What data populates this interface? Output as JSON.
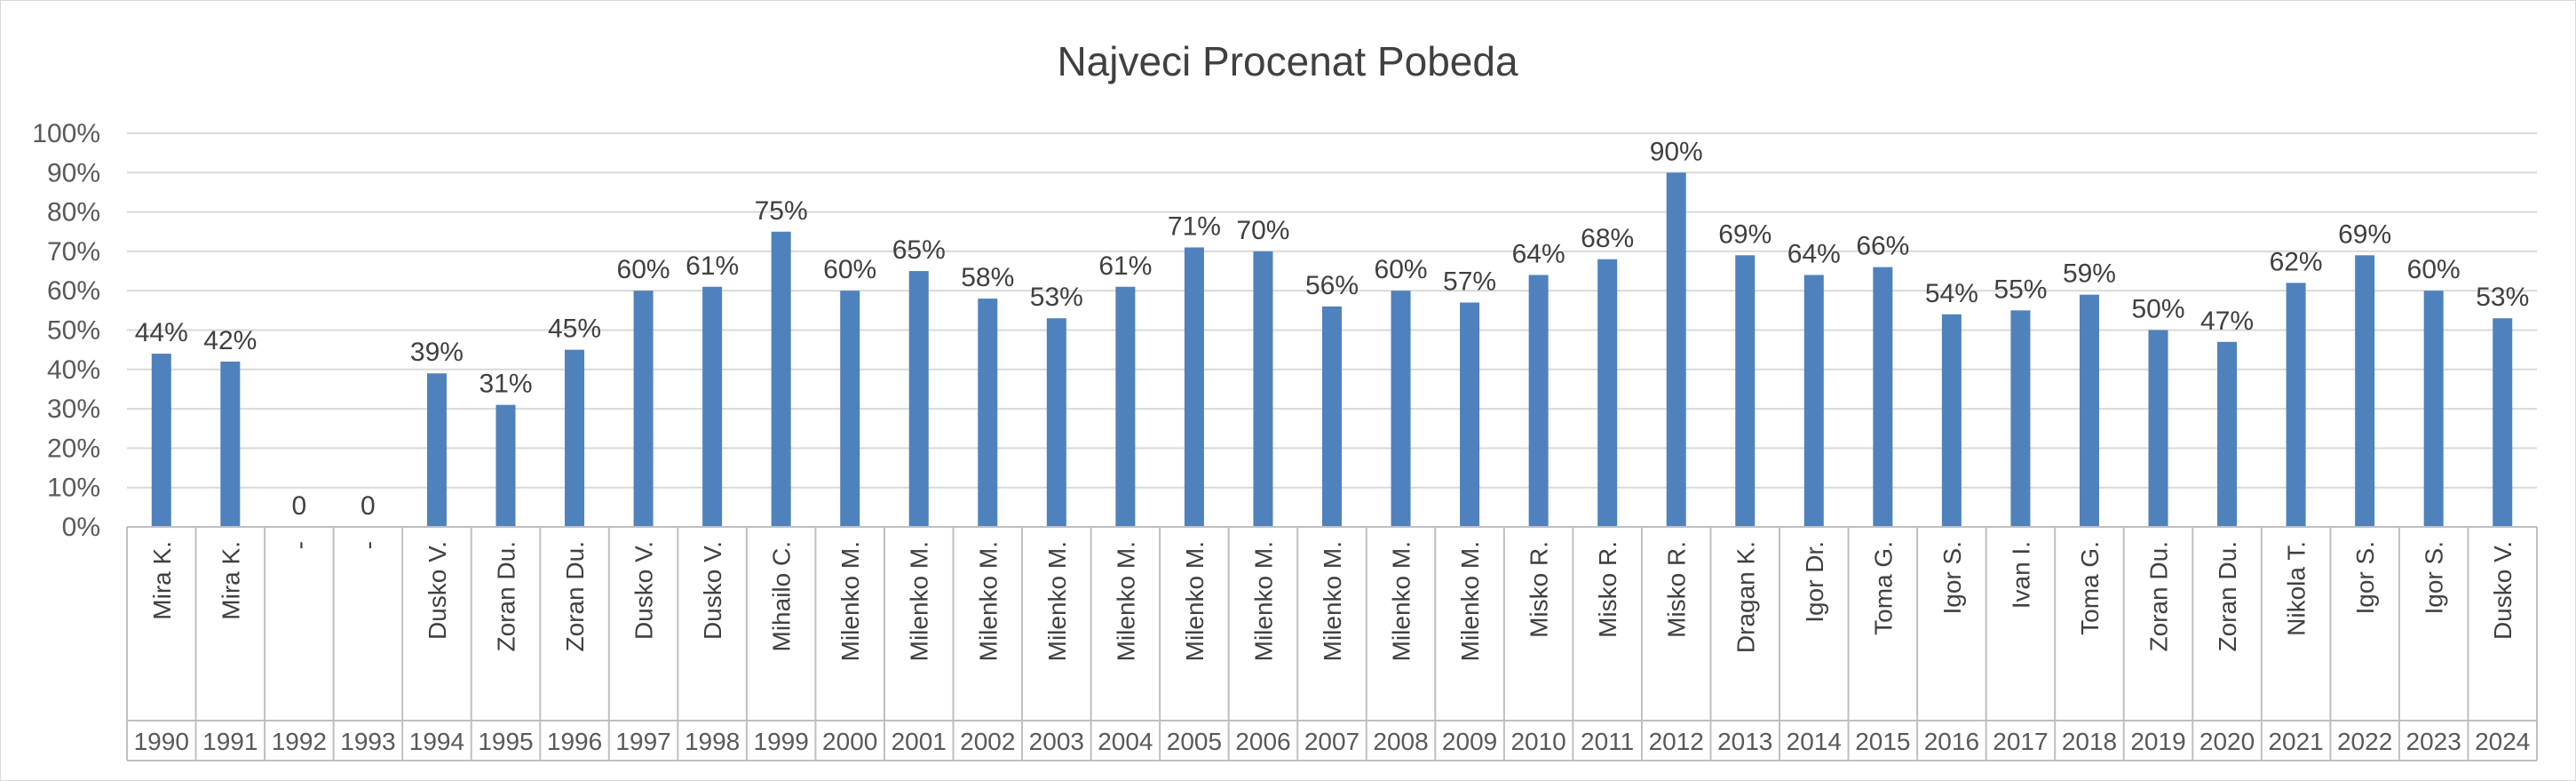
{
  "chart_data": {
    "type": "bar",
    "title": "Najveci Procenat Pobeda",
    "xlabel": "",
    "ylabel": "",
    "ylim": [
      0,
      100
    ],
    "yticks": [
      "0%",
      "10%",
      "20%",
      "30%",
      "40%",
      "50%",
      "60%",
      "70%",
      "80%",
      "90%",
      "100%"
    ],
    "grid": true,
    "bar_color": "#4f81bd",
    "categories": [
      {
        "name": "Mira K.",
        "year": "1990"
      },
      {
        "name": "Mira K.",
        "year": "1991"
      },
      {
        "name": "-",
        "year": "1992"
      },
      {
        "name": "-",
        "year": "1993"
      },
      {
        "name": "Dusko V.",
        "year": "1994"
      },
      {
        "name": "Zoran Du.",
        "year": "1995"
      },
      {
        "name": "Zoran Du.",
        "year": "1996"
      },
      {
        "name": "Dusko V.",
        "year": "1997"
      },
      {
        "name": "Dusko V.",
        "year": "1998"
      },
      {
        "name": "Mihailo C.",
        "year": "1999"
      },
      {
        "name": "Milenko M.",
        "year": "2000"
      },
      {
        "name": "Milenko M.",
        "year": "2001"
      },
      {
        "name": "Milenko M.",
        "year": "2002"
      },
      {
        "name": "Milenko M.",
        "year": "2003"
      },
      {
        "name": "Milenko M.",
        "year": "2004"
      },
      {
        "name": "Milenko M.",
        "year": "2005"
      },
      {
        "name": "Milenko M.",
        "year": "2006"
      },
      {
        "name": "Milenko M.",
        "year": "2007"
      },
      {
        "name": "Milenko M.",
        "year": "2008"
      },
      {
        "name": "Milenko M.",
        "year": "2009"
      },
      {
        "name": "Misko R.",
        "year": "2010"
      },
      {
        "name": "Misko R.",
        "year": "2011"
      },
      {
        "name": "Misko R.",
        "year": "2012"
      },
      {
        "name": "Dragan K.",
        "year": "2013"
      },
      {
        "name": "Igor Dr.",
        "year": "2014"
      },
      {
        "name": "Toma G.",
        "year": "2015"
      },
      {
        "name": "Igor S.",
        "year": "2016"
      },
      {
        "name": "Ivan I.",
        "year": "2017"
      },
      {
        "name": "Toma G.",
        "year": "2018"
      },
      {
        "name": "Zoran Du.",
        "year": "2019"
      },
      {
        "name": "Zoran Du.",
        "year": "2020"
      },
      {
        "name": "Nikola T.",
        "year": "2021"
      },
      {
        "name": "Igor S.",
        "year": "2022"
      },
      {
        "name": "Igor S.",
        "year": "2023"
      },
      {
        "name": "Dusko V.",
        "year": "2024"
      }
    ],
    "values": [
      44,
      42,
      0,
      0,
      39,
      31,
      45,
      60,
      61,
      75,
      60,
      65,
      58,
      53,
      61,
      71,
      70,
      56,
      60,
      57,
      64,
      68,
      90,
      69,
      64,
      66,
      54,
      55,
      59,
      50,
      47,
      62,
      69,
      60,
      53
    ],
    "data_labels": [
      "44%",
      "42%",
      "0",
      "0",
      "39%",
      "31%",
      "45%",
      "60%",
      "61%",
      "75%",
      "60%",
      "65%",
      "58%",
      "53%",
      "61%",
      "71%",
      "70%",
      "56%",
      "60%",
      "57%",
      "64%",
      "68%",
      "90%",
      "69%",
      "64%",
      "66%",
      "54%",
      "55%",
      "59%",
      "50%",
      "47%",
      "62%",
      "69%",
      "60%",
      "53%"
    ]
  }
}
